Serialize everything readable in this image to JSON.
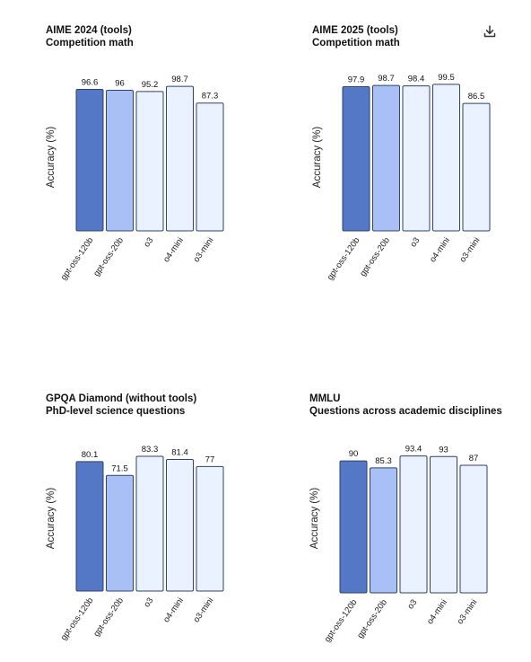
{
  "colors": {
    "gpt_oss_120b": "#5478c6",
    "gpt_oss_20b": "#a8c0f5",
    "other": "#eaf1ff",
    "stroke": "#2f4266"
  },
  "download_icon": "download-icon",
  "chart_data": [
    {
      "type": "bar",
      "title": "AIME 2024 (tools)",
      "subtitle": "Competition math",
      "ylabel": "Accuracy (%)",
      "categories": [
        "gpt-oss-120b",
        "gpt-oss-20b",
        "o3",
        "o4-mini",
        "o3-mini"
      ],
      "values": [
        96.6,
        96,
        95.2,
        98.7,
        87.3
      ],
      "value_labels": [
        "96.6",
        "96",
        "95.2",
        "98.7",
        "87.3"
      ],
      "ylim": [
        0,
        100
      ]
    },
    {
      "type": "bar",
      "title": "AIME 2025 (tools)",
      "subtitle": "Competition math",
      "ylabel": "Accuracy (%)",
      "categories": [
        "gpt-oss-120b",
        "gpt-oss-20b",
        "o3",
        "o4-mini",
        "o3-mini"
      ],
      "values": [
        97.9,
        98.7,
        98.4,
        99.5,
        86.5
      ],
      "value_labels": [
        "97.9",
        "98.7",
        "98.4",
        "99.5",
        "86.5"
      ],
      "ylim": [
        0,
        100
      ]
    },
    {
      "type": "bar",
      "title": "GPQA Diamond (without tools)",
      "subtitle": "PhD-level science questions",
      "ylabel": "Accuracy (%)",
      "categories": [
        "gpt-oss-120b",
        "gpt-oss-20b",
        "o3",
        "o4-mini",
        "o3-mini"
      ],
      "values": [
        80.1,
        71.5,
        83.3,
        81.4,
        77
      ],
      "value_labels": [
        "80.1",
        "71.5",
        "83.3",
        "81.4",
        "77"
      ],
      "ylim": [
        0,
        85
      ]
    },
    {
      "type": "bar",
      "title": "MMLU",
      "subtitle": "Questions across academic disciplines",
      "ylabel": "Accuracy (%)",
      "categories": [
        "gpt-oss-120b",
        "gpt-oss-20b",
        "o3",
        "o4-mini",
        "o3-mini"
      ],
      "values": [
        90,
        85.3,
        93.4,
        93,
        87
      ],
      "value_labels": [
        "90",
        "85.3",
        "93.4",
        "93",
        "87"
      ],
      "ylim": [
        0,
        95
      ]
    }
  ]
}
